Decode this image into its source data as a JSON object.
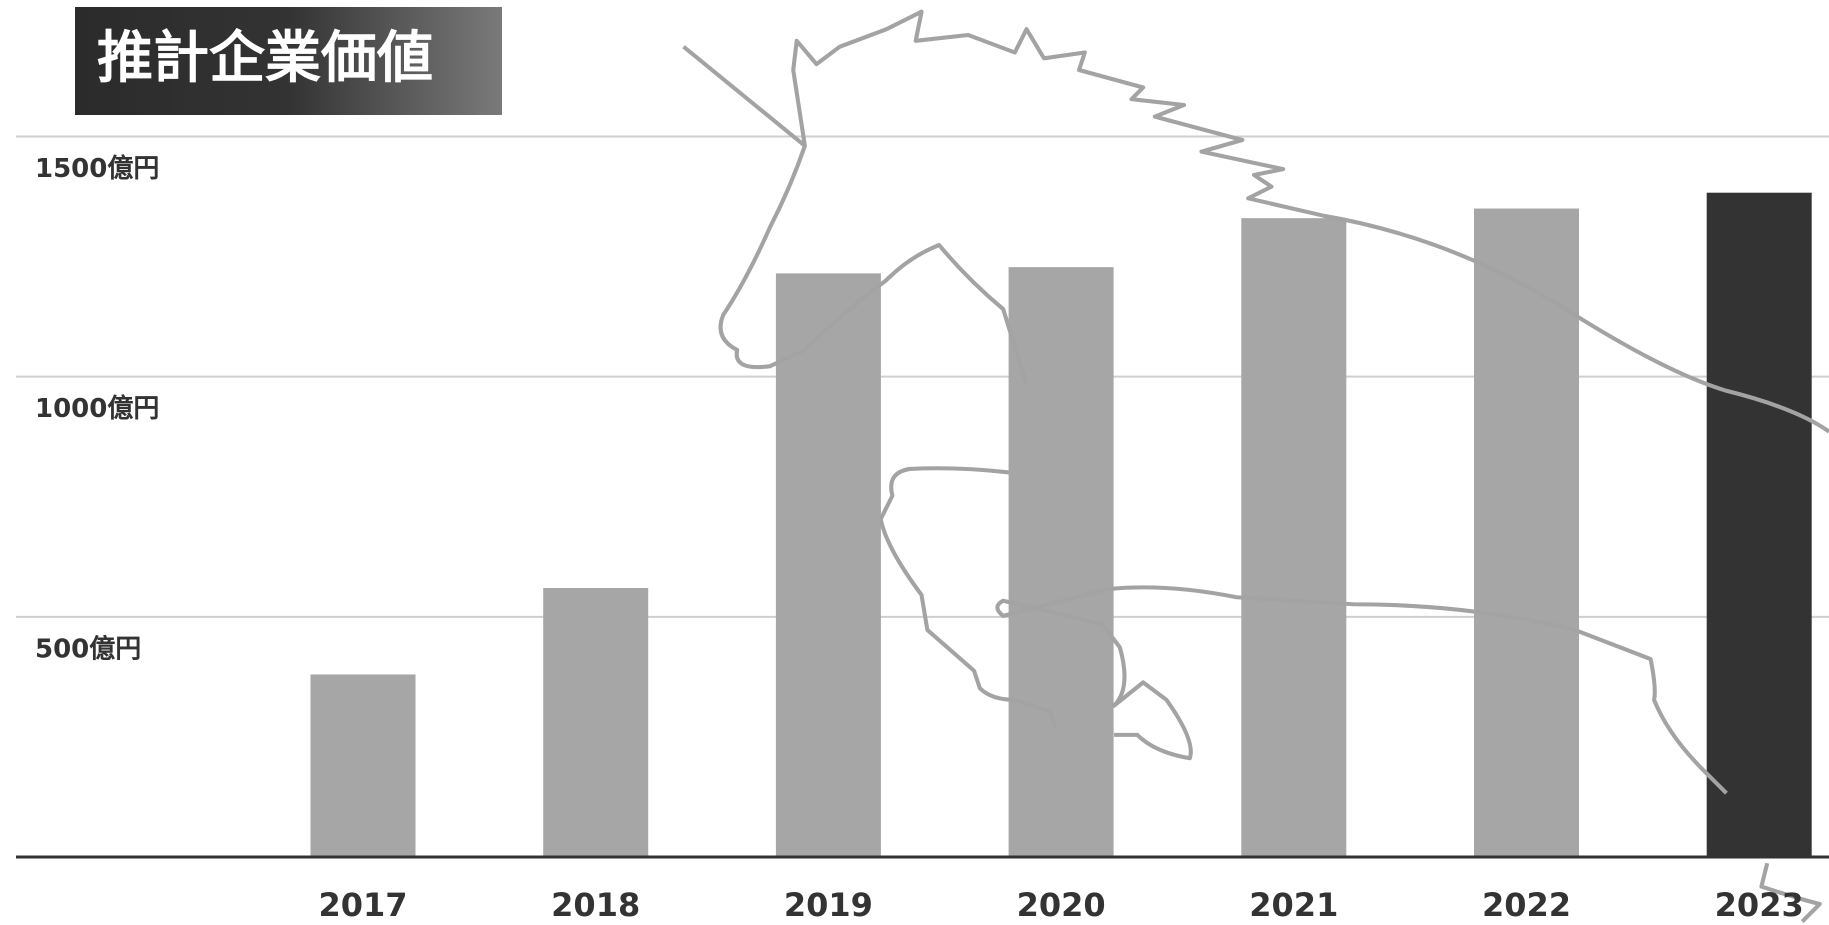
{
  "chart_data": {
    "type": "bar",
    "title": "推計企業価値",
    "categories": [
      "2017",
      "2018",
      "2019",
      "2020",
      "2021",
      "2022",
      "2023"
    ],
    "values": [
      380,
      560,
      1215,
      1228,
      1330,
      1350,
      1383
    ],
    "colors": [
      "#a6a6a6",
      "#a6a6a6",
      "#a6a6a6",
      "#a6a6a6",
      "#a6a6a6",
      "#a6a6a6",
      "#333333"
    ],
    "ylim": [
      0,
      1500
    ],
    "yticks": [
      {
        "value": 500,
        "label": "500億円"
      },
      {
        "value": 1000,
        "label": "1000億円"
      },
      {
        "value": 1500,
        "label": "1500億円"
      }
    ],
    "grid": true
  }
}
